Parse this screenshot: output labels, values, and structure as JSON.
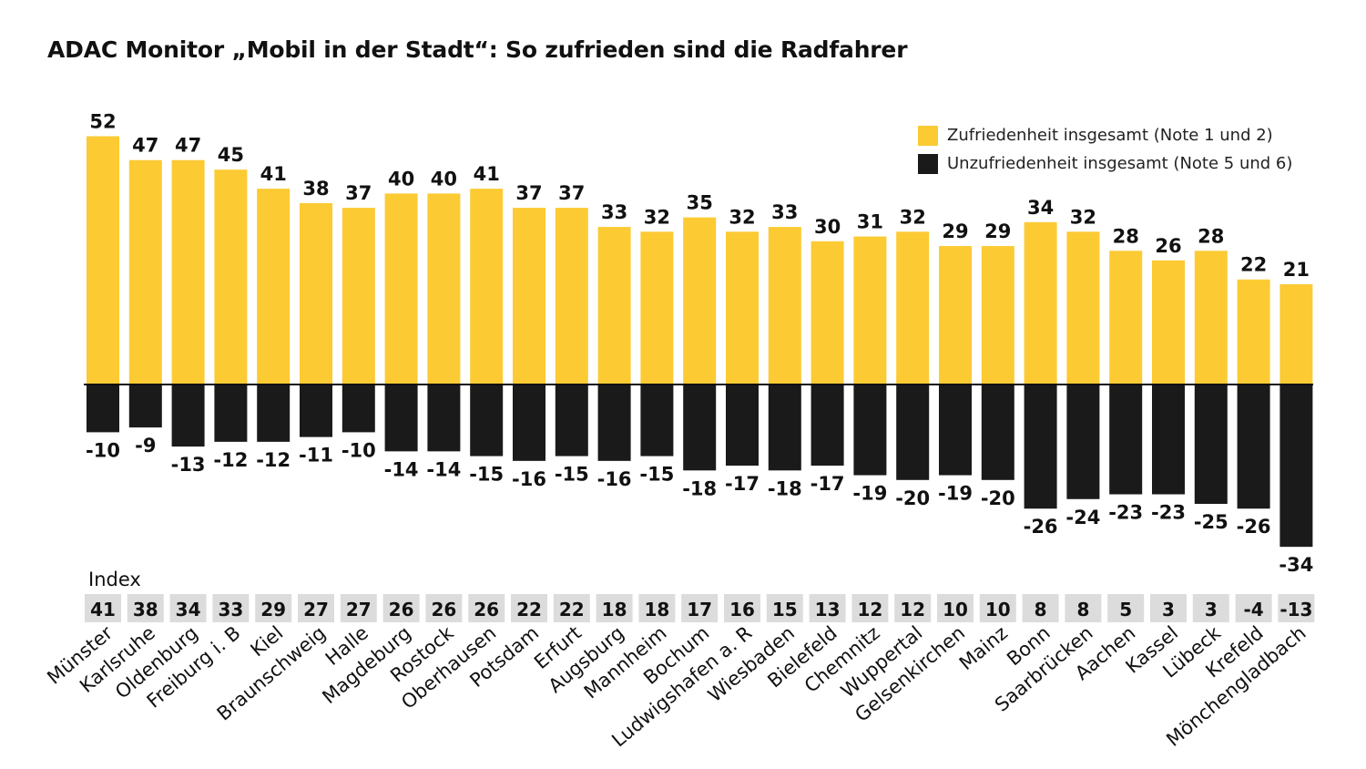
{
  "chart_data": {
    "type": "bar",
    "title": "ADAC Monitor „Mobil in der Stadt“: So zufrieden sind die Radfahrer",
    "index_label": "Index",
    "categories": [
      "Münster",
      "Karlsruhe",
      "Oldenburg",
      "Freiburg i. B",
      "Kiel",
      "Braunschweig",
      "Halle",
      "Magdeburg",
      "Rostock",
      "Oberhausen",
      "Potsdam",
      "Erfurt",
      "Augsburg",
      "Mannheim",
      "Bochum",
      "Ludwigshafen a. R",
      "Wiesbaden",
      "Bielefeld",
      "Chemnitz",
      "Wuppertal",
      "Gelsenkirchen",
      "Mainz",
      "Bonn",
      "Saarbrücken",
      "Aachen",
      "Kassel",
      "Lübeck",
      "Krefeld",
      "Mönchengladbach"
    ],
    "series": [
      {
        "name": "Zufriedenheit insgesamt (Note 1 und 2)",
        "color": "#fcca33",
        "values": [
          52,
          47,
          47,
          45,
          41,
          38,
          37,
          40,
          40,
          41,
          37,
          37,
          33,
          32,
          35,
          32,
          33,
          30,
          31,
          32,
          29,
          29,
          34,
          32,
          28,
          26,
          28,
          22,
          21
        ]
      },
      {
        "name": "Unzufriedenheit insgesamt (Note 5 und 6)",
        "color": "#1a1a1a",
        "values": [
          -10,
          -9,
          -13,
          -12,
          -12,
          -11,
          -10,
          -14,
          -14,
          -15,
          -16,
          -15,
          -16,
          -15,
          -18,
          -17,
          -18,
          -17,
          -19,
          -20,
          -19,
          -20,
          -26,
          -24,
          -23,
          -23,
          -25,
          -26,
          -34
        ]
      }
    ],
    "index": [
      41,
      38,
      34,
      33,
      29,
      27,
      27,
      26,
      26,
      26,
      22,
      22,
      18,
      18,
      17,
      16,
      15,
      13,
      12,
      12,
      10,
      10,
      8,
      8,
      5,
      3,
      3,
      -4,
      -13
    ],
    "ylim": [
      -34,
      52
    ],
    "grid": false,
    "legend_position": "top-right",
    "colors": {
      "positive": "#fcca33",
      "negative": "#1a1a1a",
      "index_box": "#dcdcdc",
      "axis": "#111111"
    }
  }
}
